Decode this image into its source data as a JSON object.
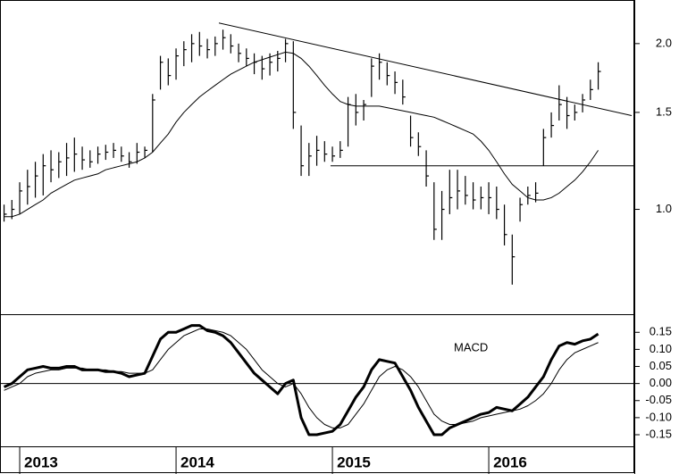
{
  "chart_data": [
    {
      "type": "hlc",
      "log_y": true,
      "color": "#000000",
      "x": [
        2012.9,
        2012.95,
        2013.0,
        2013.05,
        2013.1,
        2013.15,
        2013.2,
        2013.25,
        2013.3,
        2013.35,
        2013.4,
        2013.45,
        2013.5,
        2013.55,
        2013.6,
        2013.65,
        2013.7,
        2013.75,
        2013.8,
        2013.85,
        2013.9,
        2013.95,
        2014.0,
        2014.05,
        2014.1,
        2014.15,
        2014.2,
        2014.25,
        2014.3,
        2014.35,
        2014.4,
        2014.45,
        2014.5,
        2014.55,
        2014.6,
        2014.65,
        2014.7,
        2014.75,
        2014.8,
        2014.85,
        2014.9,
        2014.95,
        2015.0,
        2015.05,
        2015.1,
        2015.15,
        2015.2,
        2015.25,
        2015.3,
        2015.35,
        2015.4,
        2015.45,
        2015.5,
        2015.55,
        2015.6,
        2015.65,
        2015.7,
        2015.75,
        2015.8,
        2015.85,
        2015.9,
        2015.95,
        2016.0,
        2016.05,
        2016.1,
        2016.15,
        2016.2,
        2016.25,
        2016.3,
        2016.35,
        2016.4,
        2016.45,
        2016.5,
        2016.55,
        2016.6,
        2016.65,
        2016.7
      ],
      "high": [
        1.02,
        1.04,
        1.12,
        1.18,
        1.22,
        1.26,
        1.28,
        1.27,
        1.32,
        1.35,
        1.3,
        1.28,
        1.3,
        1.31,
        1.32,
        1.3,
        1.27,
        1.32,
        1.3,
        1.62,
        1.9,
        1.88,
        1.96,
        2.02,
        2.08,
        2.1,
        2.04,
        2.06,
        2.12,
        2.08,
        2.0,
        1.96,
        1.92,
        1.9,
        1.92,
        1.94,
        2.04,
        2.02,
        1.42,
        1.32,
        1.36,
        1.33,
        1.3,
        1.33,
        1.6,
        1.62,
        1.58,
        1.88,
        1.92,
        1.85,
        1.78,
        1.72,
        1.48,
        1.38,
        1.28,
        1.12,
        1.08,
        1.18,
        1.18,
        1.15,
        1.12,
        1.1,
        1.12,
        1.1,
        1.02,
        0.9,
        1.05,
        1.1,
        1.12,
        1.4,
        1.5,
        1.68,
        1.6,
        1.55,
        1.62,
        1.72,
        1.85
      ],
      "low": [
        0.95,
        0.96,
        0.98,
        1.02,
        1.05,
        1.06,
        1.12,
        1.14,
        1.15,
        1.17,
        1.18,
        1.19,
        1.21,
        1.23,
        1.24,
        1.22,
        1.19,
        1.21,
        1.24,
        1.27,
        1.65,
        1.68,
        1.72,
        1.82,
        1.85,
        1.9,
        1.88,
        1.9,
        1.95,
        1.92,
        1.85,
        1.82,
        1.76,
        1.72,
        1.75,
        1.78,
        1.85,
        1.4,
        1.15,
        1.15,
        1.2,
        1.22,
        1.22,
        1.24,
        1.3,
        1.42,
        1.45,
        1.6,
        1.72,
        1.68,
        1.62,
        1.55,
        1.3,
        1.25,
        1.1,
        0.88,
        0.88,
        0.98,
        1.0,
        1.02,
        1.0,
        1.0,
        0.98,
        0.96,
        0.86,
        0.73,
        0.95,
        1.02,
        1.03,
        1.2,
        1.35,
        1.45,
        1.4,
        1.45,
        1.5,
        1.58,
        1.65
      ],
      "close": [
        0.98,
        1.0,
        1.08,
        1.1,
        1.15,
        1.2,
        1.18,
        1.22,
        1.24,
        1.26,
        1.23,
        1.22,
        1.26,
        1.27,
        1.28,
        1.25,
        1.22,
        1.27,
        1.28,
        1.58,
        1.85,
        1.75,
        1.9,
        1.95,
        2.0,
        1.98,
        1.95,
        2.0,
        2.05,
        1.98,
        1.92,
        1.88,
        1.85,
        1.8,
        1.85,
        1.88,
        2.0,
        1.5,
        1.2,
        1.25,
        1.28,
        1.26,
        1.25,
        1.28,
        1.55,
        1.5,
        1.55,
        1.82,
        1.85,
        1.75,
        1.7,
        1.6,
        1.35,
        1.3,
        1.15,
        0.92,
        1.0,
        1.05,
        1.08,
        1.06,
        1.04,
        1.05,
        1.05,
        1.0,
        0.9,
        0.82,
        1.02,
        1.06,
        1.07,
        1.35,
        1.42,
        1.55,
        1.48,
        1.5,
        1.58,
        1.65,
        1.78
      ],
      "moving_average": [
        0.97,
        0.97,
        0.98,
        1.0,
        1.02,
        1.04,
        1.07,
        1.09,
        1.11,
        1.13,
        1.14,
        1.15,
        1.16,
        1.18,
        1.19,
        1.2,
        1.21,
        1.22,
        1.24,
        1.27,
        1.32,
        1.37,
        1.44,
        1.5,
        1.55,
        1.6,
        1.64,
        1.68,
        1.72,
        1.76,
        1.79,
        1.82,
        1.85,
        1.87,
        1.89,
        1.91,
        1.93,
        1.92,
        1.88,
        1.82,
        1.75,
        1.68,
        1.62,
        1.57,
        1.55,
        1.54,
        1.54,
        1.54,
        1.54,
        1.53,
        1.52,
        1.51,
        1.5,
        1.49,
        1.48,
        1.47,
        1.45,
        1.43,
        1.41,
        1.39,
        1.37,
        1.33,
        1.28,
        1.22,
        1.16,
        1.11,
        1.08,
        1.05,
        1.04,
        1.04,
        1.05,
        1.07,
        1.1,
        1.13,
        1.17,
        1.22,
        1.28
      ],
      "trendlines": [
        {
          "x": [
            2014.274,
            2016.914
          ],
          "y": [
            2.18,
            1.48
          ]
        },
        {
          "x": [
            2014.988,
            2016.931
          ],
          "y": [
            1.2,
            1.2
          ]
        }
      ],
      "xlim": [
        2012.874,
        2016.931
      ],
      "ylim": [
        0.645,
        2.4
      ],
      "yticks": [
        {
          "value": 1.0,
          "label": "1.0"
        },
        1.5,
        {
          "value": 2.0,
          "label": "2.0"
        }
      ]
    },
    {
      "type": "line",
      "annotation": "MACD",
      "color": "#000000",
      "zero_line": true,
      "x": [
        2012.9,
        2012.95,
        2013.0,
        2013.05,
        2013.1,
        2013.15,
        2013.2,
        2013.25,
        2013.3,
        2013.35,
        2013.4,
        2013.45,
        2013.5,
        2013.55,
        2013.6,
        2013.65,
        2013.7,
        2013.75,
        2013.8,
        2013.85,
        2013.9,
        2013.95,
        2014.0,
        2014.05,
        2014.1,
        2014.15,
        2014.2,
        2014.25,
        2014.3,
        2014.35,
        2014.4,
        2014.45,
        2014.5,
        2014.55,
        2014.6,
        2014.65,
        2014.7,
        2014.75,
        2014.8,
        2014.85,
        2014.9,
        2014.95,
        2015.0,
        2015.05,
        2015.1,
        2015.15,
        2015.2,
        2015.25,
        2015.3,
        2015.35,
        2015.4,
        2015.45,
        2015.5,
        2015.55,
        2015.6,
        2015.65,
        2015.7,
        2015.75,
        2015.8,
        2015.85,
        2015.9,
        2015.95,
        2016.0,
        2016.05,
        2016.1,
        2016.15,
        2016.2,
        2016.25,
        2016.3,
        2016.35,
        2016.4,
        2016.45,
        2016.5,
        2016.55,
        2016.6,
        2016.65,
        2016.7
      ],
      "series": [
        {
          "width": 3,
          "values": [
            -0.01,
            0.0,
            0.02,
            0.04,
            0.045,
            0.05,
            0.045,
            0.045,
            0.05,
            0.05,
            0.04,
            0.04,
            0.04,
            0.035,
            0.035,
            0.03,
            0.02,
            0.025,
            0.03,
            0.08,
            0.13,
            0.15,
            0.15,
            0.16,
            0.17,
            0.17,
            0.155,
            0.15,
            0.14,
            0.12,
            0.09,
            0.06,
            0.03,
            0.01,
            -0.01,
            -0.03,
            0.0,
            0.01,
            -0.1,
            -0.15,
            -0.15,
            -0.145,
            -0.14,
            -0.12,
            -0.08,
            -0.04,
            -0.01,
            0.04,
            0.07,
            0.065,
            0.06,
            0.02,
            -0.02,
            -0.07,
            -0.11,
            -0.15,
            -0.15,
            -0.13,
            -0.12,
            -0.11,
            -0.1,
            -0.09,
            -0.085,
            -0.07,
            -0.075,
            -0.08,
            -0.06,
            -0.04,
            -0.01,
            0.02,
            0.07,
            0.11,
            0.12,
            0.115,
            0.125,
            0.13,
            0.145
          ]
        },
        {
          "width": 1,
          "values": [
            -0.02,
            -0.01,
            0.0,
            0.02,
            0.03,
            0.035,
            0.04,
            0.04,
            0.045,
            0.045,
            0.045,
            0.04,
            0.04,
            0.04,
            0.035,
            0.035,
            0.03,
            0.03,
            0.03,
            0.04,
            0.07,
            0.1,
            0.12,
            0.14,
            0.15,
            0.16,
            0.16,
            0.155,
            0.15,
            0.14,
            0.12,
            0.1,
            0.07,
            0.04,
            0.02,
            0.0,
            -0.01,
            0.0,
            -0.03,
            -0.07,
            -0.1,
            -0.12,
            -0.13,
            -0.13,
            -0.12,
            -0.09,
            -0.06,
            -0.02,
            0.02,
            0.04,
            0.05,
            0.04,
            0.02,
            -0.01,
            -0.05,
            -0.09,
            -0.11,
            -0.12,
            -0.12,
            -0.115,
            -0.11,
            -0.1,
            -0.095,
            -0.09,
            -0.085,
            -0.08,
            -0.075,
            -0.065,
            -0.05,
            -0.03,
            0.0,
            0.04,
            0.07,
            0.09,
            0.1,
            0.11,
            0.12
          ]
        }
      ],
      "xlim": [
        2012.874,
        2016.931
      ],
      "xticks": [
        2013,
        2014,
        2015,
        2016
      ],
      "ylim": [
        -0.184,
        0.203
      ],
      "yticks": [
        0.15,
        {
          "value": 0.1,
          "label": "0.10"
        },
        0.05,
        {
          "value": 0,
          "label": "0.00"
        },
        -0.05,
        {
          "value": -0.1,
          "label": "-0.10"
        },
        -0.15
      ]
    }
  ]
}
